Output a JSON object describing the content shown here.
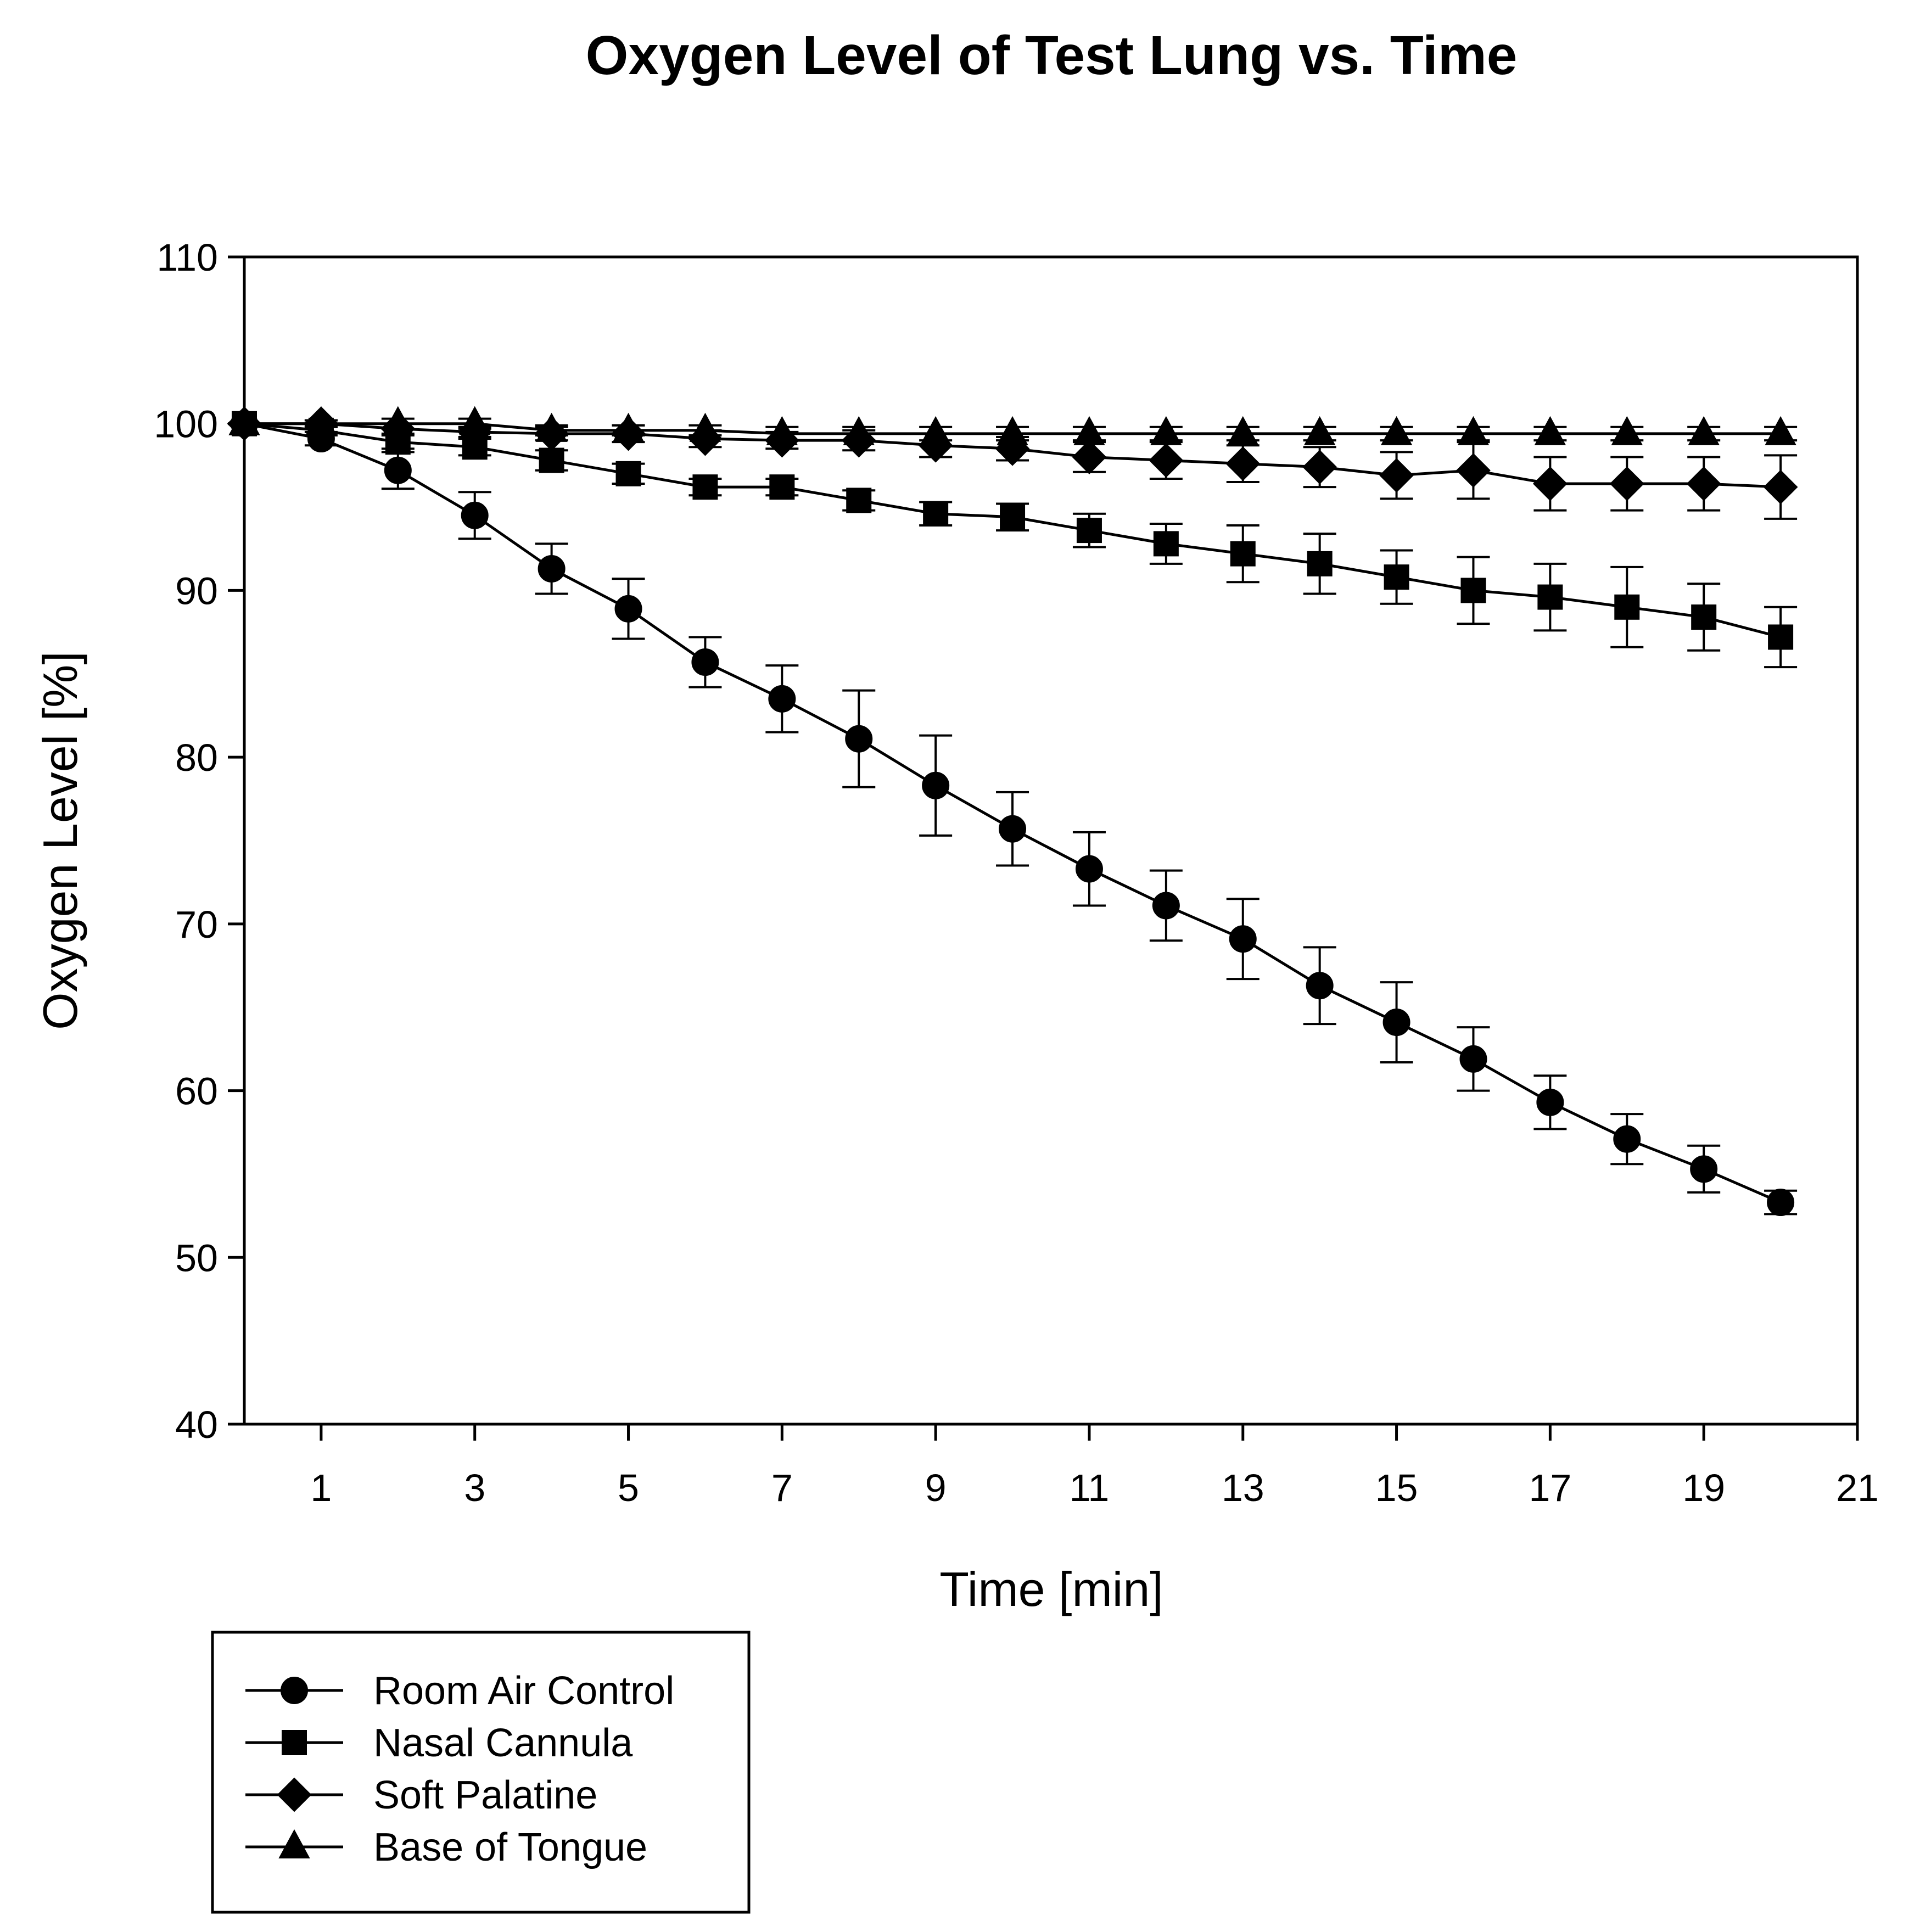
{
  "chart_data": {
    "type": "line",
    "title": "Oxygen Level of Test Lung vs. Time",
    "xlabel": "Time [min]",
    "ylabel": "Oxygen Level [%]",
    "xlim": [
      0,
      21
    ],
    "ylim": [
      40,
      110
    ],
    "xticks": [
      1,
      3,
      5,
      7,
      9,
      11,
      13,
      15,
      17,
      19,
      21
    ],
    "yticks": [
      40,
      50,
      60,
      70,
      80,
      90,
      100,
      110
    ],
    "grid": false,
    "legend_position": "bottom-left",
    "series": [
      {
        "name": "Room Air Control",
        "marker": "circle",
        "x": [
          0,
          1,
          2,
          3,
          4,
          5,
          6,
          7,
          8,
          9,
          10,
          11,
          12,
          13,
          14,
          15,
          16,
          17,
          18,
          19,
          20
        ],
        "values": [
          100,
          99.1,
          97.2,
          94.5,
          91.3,
          88.9,
          85.7,
          83.5,
          81.1,
          78.3,
          75.7,
          73.3,
          71.1,
          69.1,
          66.3,
          64.1,
          61.9,
          59.3,
          57.1,
          55.3,
          53.3
        ],
        "errors": [
          0,
          0.4,
          1.1,
          1.4,
          1.5,
          1.8,
          1.5,
          2.0,
          2.9,
          3.0,
          2.2,
          2.2,
          2.1,
          2.4,
          2.3,
          2.4,
          1.9,
          1.6,
          1.5,
          1.4,
          0.7
        ]
      },
      {
        "name": "Nasal Cannula",
        "marker": "square",
        "x": [
          0,
          1,
          2,
          3,
          4,
          5,
          6,
          7,
          8,
          9,
          10,
          11,
          12,
          13,
          14,
          15,
          16,
          17,
          18,
          19,
          20
        ],
        "values": [
          100,
          99.6,
          98.9,
          98.6,
          97.8,
          97.0,
          96.2,
          96.2,
          95.4,
          94.6,
          94.4,
          93.6,
          92.8,
          92.2,
          91.6,
          90.8,
          90.0,
          89.6,
          89.0,
          88.4,
          87.2
        ],
        "errors": [
          0,
          0.3,
          0.4,
          0.5,
          0.6,
          0.6,
          0.5,
          0.5,
          0.6,
          0.7,
          0.8,
          1.0,
          1.2,
          1.7,
          1.8,
          1.6,
          2.0,
          2.0,
          2.4,
          2.0,
          1.8
        ]
      },
      {
        "name": "Soft Palatine",
        "marker": "diamond",
        "x": [
          0,
          1,
          2,
          3,
          4,
          5,
          6,
          7,
          8,
          9,
          10,
          11,
          12,
          13,
          14,
          15,
          16,
          17,
          18,
          19,
          20
        ],
        "values": [
          100,
          100,
          99.7,
          99.5,
          99.4,
          99.4,
          99.1,
          99.0,
          99.0,
          98.7,
          98.5,
          98.0,
          97.8,
          97.6,
          97.4,
          96.9,
          97.2,
          96.4,
          96.4,
          96.4,
          96.2
        ],
        "errors": [
          0,
          0.2,
          0.3,
          0.3,
          0.4,
          0.5,
          0.5,
          0.5,
          0.6,
          0.7,
          0.7,
          0.9,
          1.1,
          1.1,
          1.2,
          1.4,
          1.7,
          1.6,
          1.6,
          1.6,
          1.9
        ]
      },
      {
        "name": "Base of Tongue",
        "marker": "triangle",
        "x": [
          0,
          1,
          2,
          3,
          4,
          5,
          6,
          7,
          8,
          9,
          10,
          11,
          12,
          13,
          14,
          15,
          16,
          17,
          18,
          19,
          20
        ],
        "values": [
          100,
          100,
          100,
          100,
          99.6,
          99.6,
          99.6,
          99.4,
          99.4,
          99.4,
          99.4,
          99.4,
          99.4,
          99.4,
          99.4,
          99.4,
          99.4,
          99.4,
          99.4,
          99.4,
          99.4
        ],
        "errors": [
          0,
          0.2,
          0.3,
          0.3,
          0.3,
          0.3,
          0.3,
          0.4,
          0.4,
          0.4,
          0.4,
          0.4,
          0.4,
          0.4,
          0.4,
          0.4,
          0.4,
          0.4,
          0.4,
          0.4,
          0.4
        ]
      }
    ]
  }
}
